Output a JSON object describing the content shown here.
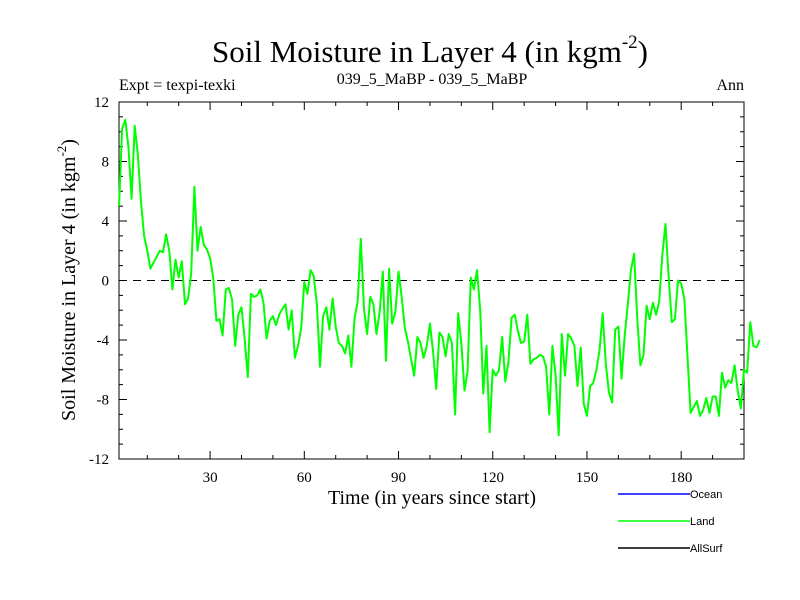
{
  "chart_data": {
    "type": "line",
    "title": "Soil Moisture in Layer 4 (in kgm",
    "title_sup": "-2",
    "title_tail": ")",
    "subtitle_left": "Expt = texpi-texki",
    "subtitle_center": "039_5_MaBP - 039_5_MaBP",
    "subtitle_right": "Ann",
    "xlabel": "Time (in years since start)",
    "ylabel": "Soil Moisture in Layer 4 (in kgm",
    "ylabel_sup": "-2",
    "ylabel_tail": ")",
    "xlim": [
      1,
      200
    ],
    "ylim": [
      -12,
      12
    ],
    "xticks": [
      30,
      60,
      90,
      120,
      150,
      180
    ],
    "yticks": [
      -12,
      -8,
      -4,
      0,
      4,
      8,
      12
    ],
    "reference_line": 0,
    "legend": [
      {
        "name": "Ocean",
        "color": "#0000ff"
      },
      {
        "name": "Land",
        "color": "#00ff00"
      },
      {
        "name": "AllSurf",
        "color": "#000000"
      }
    ],
    "series": [
      {
        "name": "Land",
        "color": "#00ff00",
        "x_start": 1,
        "x_step": 1,
        "values": [
          5,
          10.2,
          10.8,
          9,
          5.5,
          10.4,
          8.5,
          5.3,
          3,
          2,
          0.8,
          1.2,
          1.6,
          2,
          1.9,
          3.1,
          2,
          -0.6,
          1.4,
          0.2,
          1.3,
          -1.6,
          -1.2,
          0.5,
          6.3,
          2,
          3.6,
          2.4,
          2.1,
          1.5,
          0.2,
          -2.7,
          -2.6,
          -3.7,
          -0.6,
          -0.5,
          -1.3,
          -4.4,
          -2.3,
          -1.8,
          -3.9,
          -6.5,
          -0.9,
          -1.1,
          -1,
          -0.6,
          -1.5,
          -3.9,
          -2.7,
          -2.4,
          -3,
          -2.3,
          -1.9,
          -1.6,
          -3.3,
          -2,
          -5.2,
          -4.4,
          -3.2,
          -0.1,
          -0.9,
          0.7,
          0.3,
          -1.6,
          -5.8,
          -2.4,
          -1.8,
          -3.3,
          -1.2,
          -3.1,
          -4.2,
          -4.4,
          -4.9,
          -3.7,
          -5.8,
          -2.5,
          -1.4,
          2.8,
          -1.9,
          -3.6,
          -1.1,
          -1.6,
          -3.6,
          -2.1,
          0.6,
          -5.4,
          0.8,
          -2.9,
          -2.1,
          0.6,
          -1.1,
          -3.2,
          -4.1,
          -5.3,
          -6.4,
          -3.8,
          -4.2,
          -5.2,
          -4.4,
          -2.9,
          -4.8,
          -7.3,
          -3.5,
          -3.8,
          -5.1,
          -3.6,
          -4.2,
          -9,
          -2.2,
          -4.2,
          -7.4,
          -6.1,
          0.2,
          -0.6,
          0.7,
          -2,
          -7.6,
          -4.4,
          -10.2,
          -6,
          -6.4,
          -6,
          -3.8,
          -6.8,
          -5.5,
          -2.5,
          -2.3,
          -3.4,
          -4.2,
          -4.1,
          -2.3,
          -5.6,
          -5.3,
          -5.2,
          -5,
          -5.1,
          -5.8,
          -9,
          -4.4,
          -6.4,
          -10.4,
          -3.6,
          -6.4,
          -3.6,
          -3.9,
          -4.4,
          -7.1,
          -4.5,
          -8.3,
          -9.1,
          -7.1,
          -6.9,
          -6,
          -4.7,
          -2.2,
          -5.6,
          -7.5,
          -8.2,
          -3.3,
          -3.1,
          -6.6,
          -3.7,
          -1.6,
          0.7,
          1.8,
          -2.5,
          -5.7,
          -5,
          -1.7,
          -2.6,
          -1.5,
          -2.3,
          -1.4,
          1.7,
          3.8,
          0.3,
          -2.8,
          -2.6,
          0,
          -0.2,
          -1.2,
          -5.1,
          -8.9,
          -8.5,
          -8.1,
          -9.1,
          -8.7,
          -7.9,
          -8.9,
          -7.8,
          -7.8,
          -9.1,
          -6.2,
          -7.2,
          -6.7,
          -6.9,
          -5.7,
          -7.4,
          -8.6,
          -6,
          -6.2,
          -2.8,
          -4.4,
          -4.5,
          -4
        ]
      },
      {
        "name": "Ocean",
        "color": "#0000ff",
        "values": []
      },
      {
        "name": "AllSurf",
        "color": "#000000",
        "values": []
      }
    ]
  }
}
